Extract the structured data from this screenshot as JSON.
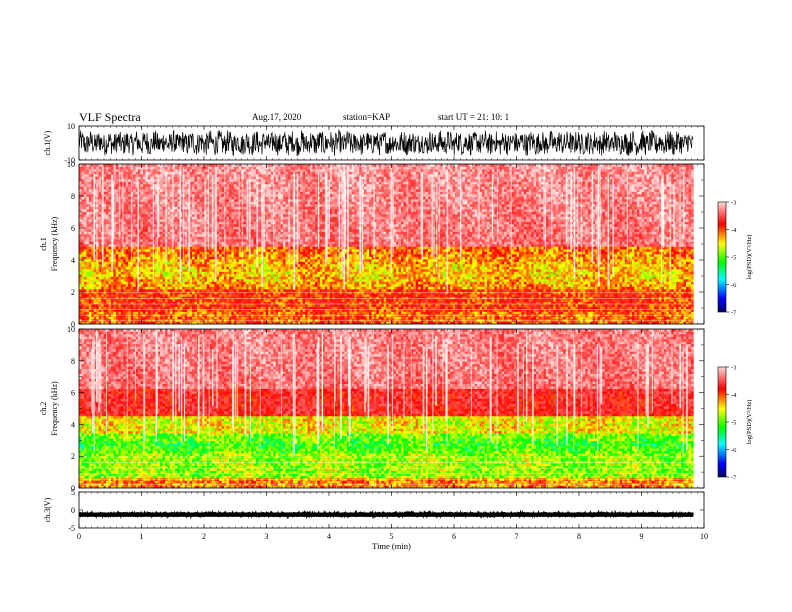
{
  "header": {
    "title": "VLF Spectra",
    "date": "Aug.17, 2020",
    "station": "station=KAP",
    "start_ut": "start UT =  21: 10: 1"
  },
  "chart_data": [
    {
      "id": "ch1-waveform",
      "type": "line",
      "ylabel": "ch.1(V)",
      "ylim": [
        -10,
        10
      ],
      "yticks": [
        "10",
        "-10"
      ],
      "xlim": [
        0,
        10
      ]
    },
    {
      "id": "ch1-spectrogram",
      "type": "heatmap",
      "ylabel_channel": "ch.1",
      "ylabel": "Frequency (kHz)",
      "ylim": [
        0,
        10
      ],
      "yticks": [
        "0",
        "2",
        "4",
        "6",
        "8",
        "10"
      ],
      "xlim": [
        0,
        10
      ],
      "data_x_extent": [
        0,
        9.83
      ],
      "colorbar": {
        "label": "log(PSD)(V²/Hz)",
        "range": [
          -7,
          -3
        ],
        "ticks": [
          "-3",
          "-4",
          "-5",
          "-6",
          "-7"
        ]
      }
    },
    {
      "id": "ch2-spectrogram",
      "type": "heatmap",
      "ylabel_channel": "ch.2",
      "ylabel": "Frequency (kHz)",
      "ylim": [
        0,
        10
      ],
      "yticks": [
        "0",
        "2",
        "4",
        "6",
        "8",
        "10"
      ],
      "xlim": [
        0,
        10
      ],
      "data_x_extent": [
        0,
        9.83
      ],
      "colorbar": {
        "label": "log(PSD)(V²/Hz)",
        "range": [
          -7,
          -3
        ],
        "ticks": [
          "-3",
          "-4",
          "-5",
          "-6",
          "-7"
        ]
      }
    },
    {
      "id": "ch3-waveform",
      "type": "line",
      "ylabel": "ch.3(V)",
      "ylim": [
        -5,
        5
      ],
      "yticks": [
        "5",
        "0",
        "-5"
      ],
      "xlim": [
        0,
        10
      ],
      "xlabel": "Time (min)",
      "xticks": [
        "0",
        "1",
        "2",
        "3",
        "4",
        "5",
        "6",
        "7",
        "8",
        "9",
        "10"
      ]
    }
  ],
  "colors": {
    "background": "#ffffff",
    "axis": "#000000",
    "trace": "#000000",
    "colormap": [
      "#000066",
      "#0000ff",
      "#00ffff",
      "#00ff00",
      "#ffff00",
      "#ff0000",
      "#ffffff"
    ]
  }
}
